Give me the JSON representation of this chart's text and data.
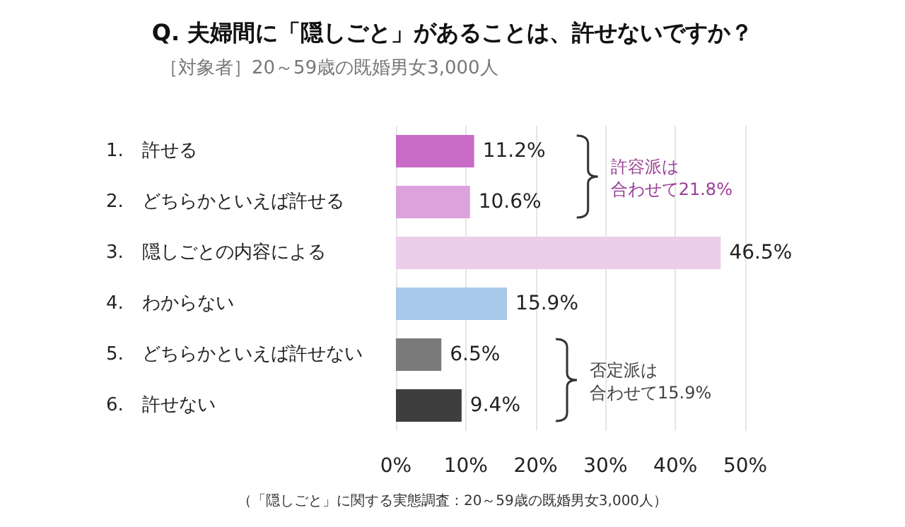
{
  "chart_data": {
    "type": "bar",
    "orientation": "horizontal",
    "title": "Q. 夫婦間に「隠しごと」があることは、許せないですか？",
    "subtitle": "［対象者］20～59歳の既婚男女3,000人",
    "categories": [
      "1.　許せる",
      "2.　どちらかといえば許せる",
      "3.　隠しごとの内容による",
      "4.　わからない",
      "5.　どちらかといえば許せない",
      "6.　許せない"
    ],
    "values": [
      11.2,
      10.6,
      46.5,
      15.9,
      6.5,
      9.4
    ],
    "colors": [
      "#c86cc8",
      "#dba2dc",
      "#eccdea",
      "#a9c9ea",
      "#7a7a7a",
      "#3e3e3e"
    ],
    "value_labels": [
      "11.2%",
      "10.6%",
      "46.5%",
      "15.9%",
      "6.5%",
      "9.4%"
    ],
    "xlim": [
      0,
      50
    ],
    "xticks": [
      {
        "value": 0,
        "label": "0%"
      },
      {
        "value": 10,
        "label": "10%"
      },
      {
        "value": 20,
        "label": "20%"
      },
      {
        "value": 30,
        "label": "30%"
      },
      {
        "value": 40,
        "label": "40%"
      },
      {
        "value": 50,
        "label": "50%"
      }
    ],
    "grid": "x",
    "annotations": [
      "許容派は合わせて21.8%",
      "否定派は合わせて15.9%",
      "（「隠しごと」に関する実態調査：20～59歳の既婚男女3,000人）"
    ]
  }
}
